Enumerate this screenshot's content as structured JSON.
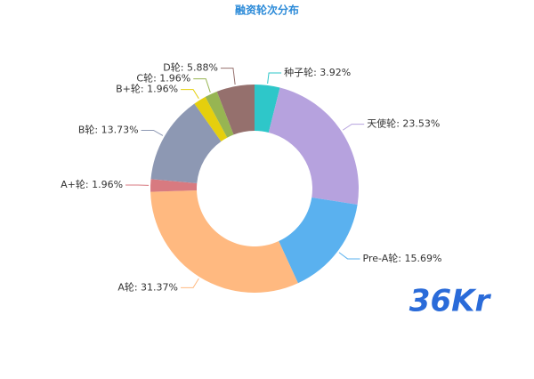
{
  "chart_data": {
    "type": "pie",
    "title": "融资轮次分布",
    "categories": [
      "种子轮",
      "天使轮",
      "Pre-A轮",
      "A轮",
      "A+轮",
      "B轮",
      "B+轮",
      "C轮",
      "D轮"
    ],
    "values": [
      3.92,
      23.53,
      15.69,
      31.37,
      1.96,
      13.73,
      1.96,
      1.96,
      5.88
    ],
    "value_labels": [
      ": 3.92%",
      ": 23.53%",
      ": 15.69%",
      ": 31.37%",
      ": 1.96%",
      ": 13.73%",
      ": 1.96%",
      ": 1.96%",
      ": 5.88%"
    ],
    "colors": [
      "#2ec7c9",
      "#b6a2de",
      "#5ab1ef",
      "#ffb980",
      "#d87a80",
      "#8d98b3",
      "#e5cf0d",
      "#97b552",
      "#95706d"
    ],
    "watermark": "36Kr"
  }
}
